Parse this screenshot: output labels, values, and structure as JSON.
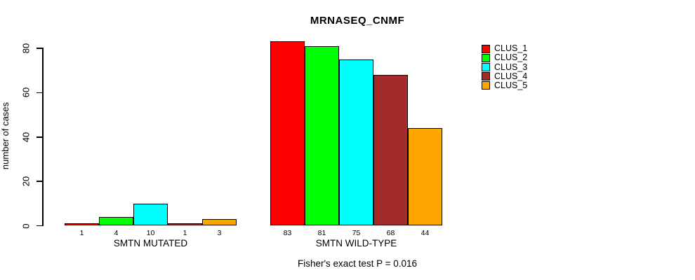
{
  "title": "MRNASEQ_CNMF",
  "caption": "Fisher's exact test P = 0.016",
  "chart_data": {
    "type": "bar",
    "title": "MRNASEQ_CNMF",
    "xlabel": "",
    "ylabel": "number of cases",
    "ylim": [
      0,
      83
    ],
    "yticks": [
      0,
      20,
      40,
      60,
      80
    ],
    "grid": false,
    "legend_position": "right",
    "legend": [
      {
        "label": "CLUS_1",
        "color": "#FF0000"
      },
      {
        "label": "CLUS_2",
        "color": "#00FF00"
      },
      {
        "label": "CLUS_3",
        "color": "#00FFFF"
      },
      {
        "label": "CLUS_4",
        "color": "#A52A2A"
      },
      {
        "label": "CLUS_5",
        "color": "#FFA500"
      }
    ],
    "categories": [
      "SMTN MUTATED",
      "SMTN WILD-TYPE"
    ],
    "groups": [
      {
        "label": "SMTN MUTATED",
        "values": [
          1,
          4,
          10,
          1,
          3
        ]
      },
      {
        "label": "SMTN WILD-TYPE",
        "values": [
          83,
          81,
          75,
          68,
          44
        ]
      }
    ],
    "bar_value_labels_shown": true,
    "annotation": "Fisher's exact test P = 0.016",
    "axis_color": "#000000",
    "background_color": "#FFFFFF"
  }
}
